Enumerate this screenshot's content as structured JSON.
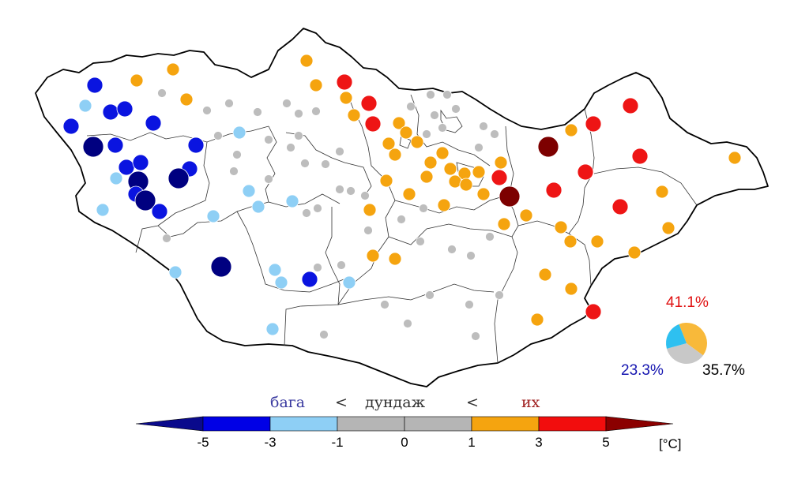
{
  "legend": {
    "category_low": "бага",
    "separator_1": "<",
    "category_mid": "дундаж",
    "separator_2": "<",
    "category_high": "их",
    "tick_labels": [
      "-5",
      "-3",
      "-1",
      "0",
      "1",
      "3",
      "5"
    ],
    "unit": "[°C]",
    "bins": [
      {
        "range": "< -5",
        "color": "#0a0a8c"
      },
      {
        "range": "-5 … -3",
        "color": "#0000e6"
      },
      {
        "range": "-3 … -1",
        "color": "#1010ee"
      },
      {
        "range": "-1 … 1",
        "color": "#b5b5b5"
      },
      {
        "range": "1 … 3",
        "color": "#f5a40f"
      },
      {
        "range": "3 … 5",
        "color": "#f20d0d"
      },
      {
        "range": "> 5",
        "color": "#8b0000"
      }
    ]
  },
  "summary": {
    "above_pct": "41.1%",
    "normal_pct": "35.7%",
    "below_pct": "23.3%",
    "pie_fractions": {
      "above": 0.411,
      "normal": 0.357,
      "below": 0.233
    },
    "colors": {
      "above": "#f8b93a",
      "normal": "#c8c8c8",
      "below": "#2ec0f0",
      "above_text": "#e01010",
      "normal_text": "#000000",
      "below_text": "#1515b0"
    }
  },
  "stations": {
    "classes": {
      "c_m5": {
        "color": "#000080"
      },
      "c_m3": {
        "color": "#0a14e0"
      },
      "c_m1": {
        "color": "#8ecff5"
      },
      "c_0": {
        "color": "#bdbdbd"
      },
      "c_p1": {
        "color": "#f5a40f"
      },
      "c_p3": {
        "color": "#ee1515"
      },
      "c_p5": {
        "color": "#7d0000"
      }
    }
  }
}
